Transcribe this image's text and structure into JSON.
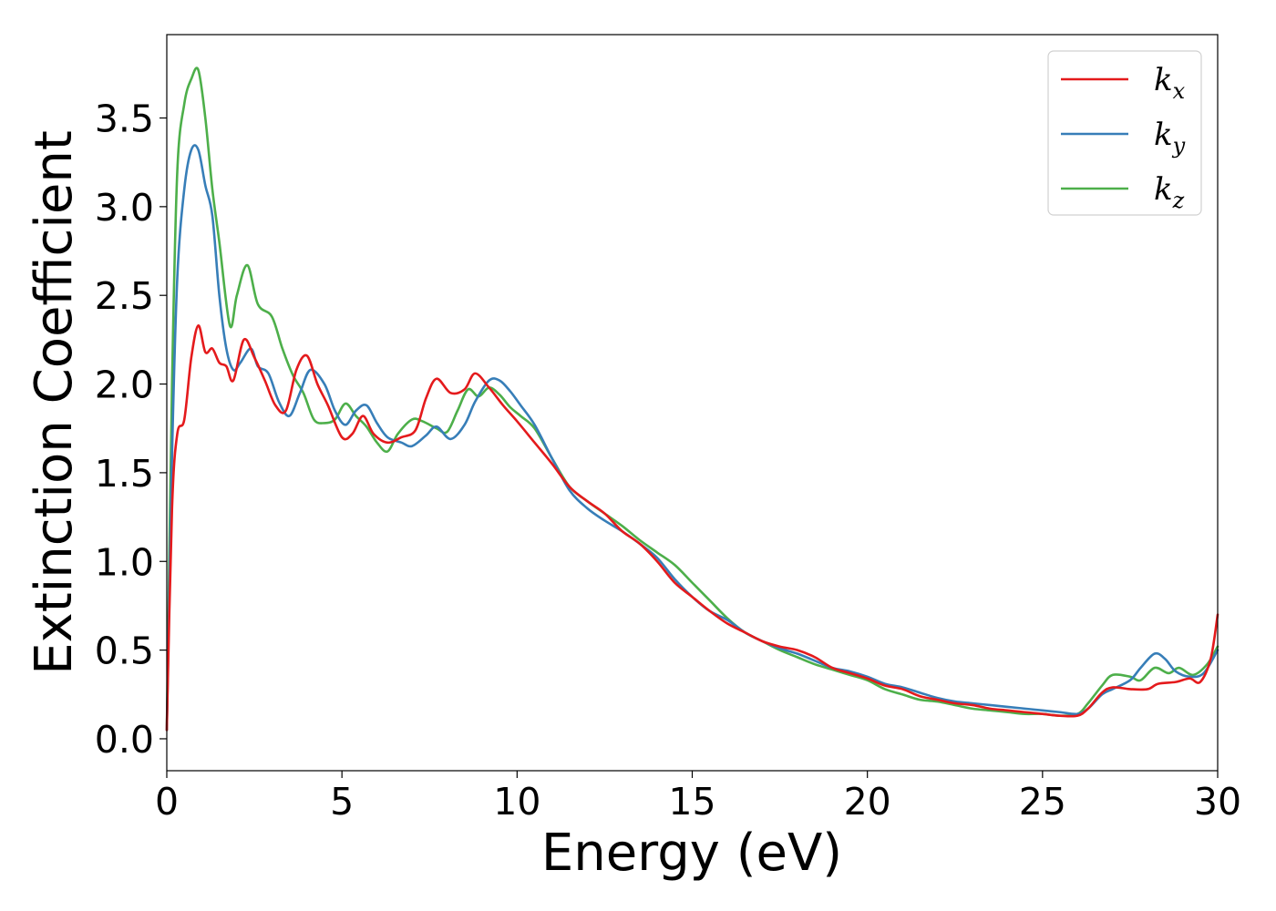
{
  "chart_data": {
    "type": "line",
    "title": "",
    "xlabel": "Energy (eV)",
    "ylabel": "Extinction Coefficient",
    "xlim": [
      0,
      30
    ],
    "ylim": [
      -0.18,
      3.97
    ],
    "xticks": [
      0,
      5,
      10,
      15,
      20,
      25,
      30
    ],
    "xtick_labels": [
      "0",
      "5",
      "10",
      "15",
      "20",
      "25",
      "30"
    ],
    "yticks": [
      0.0,
      0.5,
      1.0,
      1.5,
      2.0,
      2.5,
      3.0,
      3.5
    ],
    "ytick_labels": [
      "0.0",
      "0.5",
      "1.0",
      "1.5",
      "2.0",
      "2.5",
      "3.0",
      "3.5"
    ],
    "grid": false,
    "legend_position": "top-right",
    "series": [
      {
        "name": "k_x",
        "legend_base": "k",
        "legend_sub": "x",
        "color": "#e41a1c",
        "points": [
          [
            0,
            0.05
          ],
          [
            0.15,
            1.3
          ],
          [
            0.3,
            1.72
          ],
          [
            0.5,
            1.8
          ],
          [
            0.7,
            2.15
          ],
          [
            0.9,
            2.33
          ],
          [
            1.1,
            2.18
          ],
          [
            1.3,
            2.2
          ],
          [
            1.5,
            2.12
          ],
          [
            1.7,
            2.1
          ],
          [
            1.9,
            2.02
          ],
          [
            2.2,
            2.25
          ],
          [
            2.5,
            2.15
          ],
          [
            2.8,
            2.02
          ],
          [
            3.1,
            1.88
          ],
          [
            3.4,
            1.85
          ],
          [
            3.7,
            2.08
          ],
          [
            4.0,
            2.16
          ],
          [
            4.3,
            2.0
          ],
          [
            4.6,
            1.88
          ],
          [
            5.0,
            1.7
          ],
          [
            5.3,
            1.72
          ],
          [
            5.6,
            1.82
          ],
          [
            5.9,
            1.72
          ],
          [
            6.3,
            1.67
          ],
          [
            6.7,
            1.7
          ],
          [
            7.1,
            1.74
          ],
          [
            7.4,
            1.92
          ],
          [
            7.7,
            2.03
          ],
          [
            8.1,
            1.95
          ],
          [
            8.5,
            1.97
          ],
          [
            8.8,
            2.06
          ],
          [
            9.2,
            1.98
          ],
          [
            9.6,
            1.88
          ],
          [
            10.0,
            1.79
          ],
          [
            10.5,
            1.67
          ],
          [
            11.0,
            1.55
          ],
          [
            11.5,
            1.42
          ],
          [
            12.0,
            1.34
          ],
          [
            12.5,
            1.27
          ],
          [
            13.0,
            1.17
          ],
          [
            13.5,
            1.1
          ],
          [
            14.0,
            1.0
          ],
          [
            14.5,
            0.88
          ],
          [
            15.0,
            0.8
          ],
          [
            15.5,
            0.72
          ],
          [
            16.0,
            0.65
          ],
          [
            16.5,
            0.6
          ],
          [
            17.0,
            0.55
          ],
          [
            17.5,
            0.52
          ],
          [
            18.0,
            0.5
          ],
          [
            18.5,
            0.46
          ],
          [
            19.0,
            0.4
          ],
          [
            19.5,
            0.37
          ],
          [
            20.0,
            0.34
          ],
          [
            20.5,
            0.3
          ],
          [
            21.0,
            0.28
          ],
          [
            21.5,
            0.24
          ],
          [
            22.0,
            0.22
          ],
          [
            22.5,
            0.2
          ],
          [
            23.0,
            0.19
          ],
          [
            23.5,
            0.17
          ],
          [
            24.0,
            0.16
          ],
          [
            24.5,
            0.15
          ],
          [
            25.0,
            0.14
          ],
          [
            25.5,
            0.13
          ],
          [
            26.0,
            0.13
          ],
          [
            26.3,
            0.17
          ],
          [
            26.7,
            0.26
          ],
          [
            27.0,
            0.29
          ],
          [
            27.5,
            0.28
          ],
          [
            28.0,
            0.28
          ],
          [
            28.3,
            0.31
          ],
          [
            28.8,
            0.32
          ],
          [
            29.2,
            0.34
          ],
          [
            29.5,
            0.32
          ],
          [
            29.8,
            0.45
          ],
          [
            30.0,
            0.7
          ]
        ]
      },
      {
        "name": "k_y",
        "legend_base": "k",
        "legend_sub": "y",
        "color": "#377eb8",
        "points": [
          [
            0,
            0.05
          ],
          [
            0.15,
            1.6
          ],
          [
            0.3,
            2.6
          ],
          [
            0.5,
            3.1
          ],
          [
            0.7,
            3.32
          ],
          [
            0.9,
            3.32
          ],
          [
            1.1,
            3.12
          ],
          [
            1.3,
            2.95
          ],
          [
            1.5,
            2.5
          ],
          [
            1.7,
            2.2
          ],
          [
            1.9,
            2.08
          ],
          [
            2.1,
            2.12
          ],
          [
            2.4,
            2.2
          ],
          [
            2.6,
            2.1
          ],
          [
            2.9,
            2.06
          ],
          [
            3.2,
            1.9
          ],
          [
            3.5,
            1.82
          ],
          [
            3.8,
            1.95
          ],
          [
            4.1,
            2.08
          ],
          [
            4.5,
            2.0
          ],
          [
            4.8,
            1.85
          ],
          [
            5.1,
            1.77
          ],
          [
            5.4,
            1.85
          ],
          [
            5.7,
            1.88
          ],
          [
            6.0,
            1.78
          ],
          [
            6.3,
            1.7
          ],
          [
            6.7,
            1.67
          ],
          [
            7.0,
            1.65
          ],
          [
            7.4,
            1.71
          ],
          [
            7.7,
            1.76
          ],
          [
            8.1,
            1.69
          ],
          [
            8.5,
            1.77
          ],
          [
            8.8,
            1.9
          ],
          [
            9.2,
            2.02
          ],
          [
            9.5,
            2.02
          ],
          [
            9.8,
            1.96
          ],
          [
            10.1,
            1.88
          ],
          [
            10.5,
            1.77
          ],
          [
            11.0,
            1.58
          ],
          [
            11.5,
            1.4
          ],
          [
            12.0,
            1.3
          ],
          [
            12.5,
            1.23
          ],
          [
            13.0,
            1.17
          ],
          [
            13.5,
            1.1
          ],
          [
            14.0,
            1.02
          ],
          [
            14.5,
            0.9
          ],
          [
            15.0,
            0.8
          ],
          [
            15.5,
            0.72
          ],
          [
            16.0,
            0.67
          ],
          [
            16.5,
            0.6
          ],
          [
            17.0,
            0.55
          ],
          [
            17.5,
            0.51
          ],
          [
            18.0,
            0.48
          ],
          [
            18.5,
            0.44
          ],
          [
            19.0,
            0.4
          ],
          [
            19.5,
            0.38
          ],
          [
            20.0,
            0.35
          ],
          [
            20.5,
            0.31
          ],
          [
            21.0,
            0.29
          ],
          [
            21.5,
            0.26
          ],
          [
            22.0,
            0.23
          ],
          [
            22.5,
            0.21
          ],
          [
            23.0,
            0.2
          ],
          [
            23.5,
            0.19
          ],
          [
            24.0,
            0.18
          ],
          [
            24.5,
            0.17
          ],
          [
            25.0,
            0.16
          ],
          [
            25.5,
            0.15
          ],
          [
            26.0,
            0.14
          ],
          [
            26.3,
            0.17
          ],
          [
            26.7,
            0.25
          ],
          [
            27.0,
            0.28
          ],
          [
            27.5,
            0.33
          ],
          [
            27.8,
            0.4
          ],
          [
            28.2,
            0.48
          ],
          [
            28.5,
            0.45
          ],
          [
            28.8,
            0.38
          ],
          [
            29.2,
            0.35
          ],
          [
            29.6,
            0.37
          ],
          [
            30.0,
            0.5
          ]
        ]
      },
      {
        "name": "k_z",
        "legend_base": "k",
        "legend_sub": "z",
        "color": "#4daf4a",
        "points": [
          [
            0,
            0.05
          ],
          [
            0.15,
            2.0
          ],
          [
            0.3,
            3.2
          ],
          [
            0.5,
            3.58
          ],
          [
            0.7,
            3.72
          ],
          [
            0.9,
            3.77
          ],
          [
            1.1,
            3.5
          ],
          [
            1.3,
            3.1
          ],
          [
            1.5,
            2.8
          ],
          [
            1.8,
            2.33
          ],
          [
            2.0,
            2.5
          ],
          [
            2.3,
            2.67
          ],
          [
            2.6,
            2.45
          ],
          [
            3.0,
            2.38
          ],
          [
            3.3,
            2.2
          ],
          [
            3.6,
            2.05
          ],
          [
            3.9,
            1.95
          ],
          [
            4.2,
            1.8
          ],
          [
            4.5,
            1.78
          ],
          [
            4.8,
            1.8
          ],
          [
            5.1,
            1.89
          ],
          [
            5.4,
            1.82
          ],
          [
            5.7,
            1.76
          ],
          [
            6.0,
            1.67
          ],
          [
            6.3,
            1.62
          ],
          [
            6.6,
            1.72
          ],
          [
            7.0,
            1.8
          ],
          [
            7.3,
            1.79
          ],
          [
            7.7,
            1.75
          ],
          [
            8.0,
            1.73
          ],
          [
            8.3,
            1.85
          ],
          [
            8.6,
            1.97
          ],
          [
            8.9,
            1.93
          ],
          [
            9.2,
            1.98
          ],
          [
            9.5,
            1.94
          ],
          [
            9.8,
            1.87
          ],
          [
            10.1,
            1.82
          ],
          [
            10.5,
            1.75
          ],
          [
            11.0,
            1.58
          ],
          [
            11.5,
            1.42
          ],
          [
            12.0,
            1.34
          ],
          [
            12.5,
            1.27
          ],
          [
            13.0,
            1.2
          ],
          [
            13.5,
            1.12
          ],
          [
            14.0,
            1.05
          ],
          [
            14.5,
            0.98
          ],
          [
            15.0,
            0.88
          ],
          [
            15.5,
            0.78
          ],
          [
            16.0,
            0.68
          ],
          [
            16.5,
            0.6
          ],
          [
            17.0,
            0.55
          ],
          [
            17.5,
            0.5
          ],
          [
            18.0,
            0.46
          ],
          [
            18.5,
            0.42
          ],
          [
            19.0,
            0.39
          ],
          [
            19.5,
            0.36
          ],
          [
            20.0,
            0.33
          ],
          [
            20.5,
            0.28
          ],
          [
            21.0,
            0.25
          ],
          [
            21.5,
            0.22
          ],
          [
            22.0,
            0.21
          ],
          [
            22.5,
            0.19
          ],
          [
            23.0,
            0.17
          ],
          [
            23.5,
            0.16
          ],
          [
            24.0,
            0.15
          ],
          [
            24.5,
            0.14
          ],
          [
            25.0,
            0.14
          ],
          [
            25.5,
            0.13
          ],
          [
            26.0,
            0.14
          ],
          [
            26.3,
            0.2
          ],
          [
            26.7,
            0.3
          ],
          [
            27.0,
            0.36
          ],
          [
            27.5,
            0.35
          ],
          [
            27.8,
            0.33
          ],
          [
            28.2,
            0.4
          ],
          [
            28.6,
            0.37
          ],
          [
            28.9,
            0.4
          ],
          [
            29.3,
            0.36
          ],
          [
            29.7,
            0.42
          ],
          [
            30.0,
            0.52
          ]
        ]
      }
    ]
  }
}
